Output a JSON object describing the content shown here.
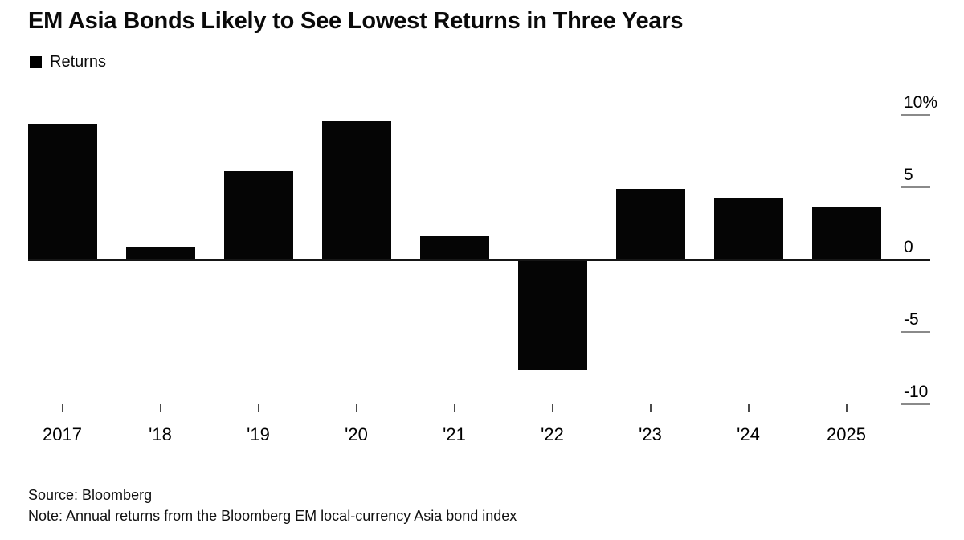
{
  "title": "EM Asia Bonds Likely to See Lowest Returns in Three Years",
  "legend": {
    "label": "Returns",
    "color": "#000000"
  },
  "chart_data": {
    "type": "bar",
    "title": "EM Asia Bonds Likely to See Lowest Returns in Three Years",
    "series_name": "Returns",
    "categories": [
      "2017",
      "'18",
      "'19",
      "'20",
      "'21",
      "'22",
      "'23",
      "'24",
      "2025"
    ],
    "values": [
      9.4,
      0.9,
      6.1,
      9.6,
      1.6,
      -7.6,
      4.9,
      4.3,
      3.6
    ],
    "xlabel": "",
    "ylabel": "",
    "ylim": [
      -10,
      10
    ],
    "yticks": [
      10,
      5,
      0,
      -5,
      -10
    ],
    "ytick_labels": [
      "10%",
      "5",
      "0",
      "-5",
      "-10"
    ],
    "bar_color": "#050505",
    "grid": "right-side tick dashes only, solid zero baseline",
    "legend_position": "top-left"
  },
  "footer": {
    "source": "Source: Bloomberg",
    "note": "Note: Annual returns from the Bloomberg EM local-currency Asia bond index"
  }
}
